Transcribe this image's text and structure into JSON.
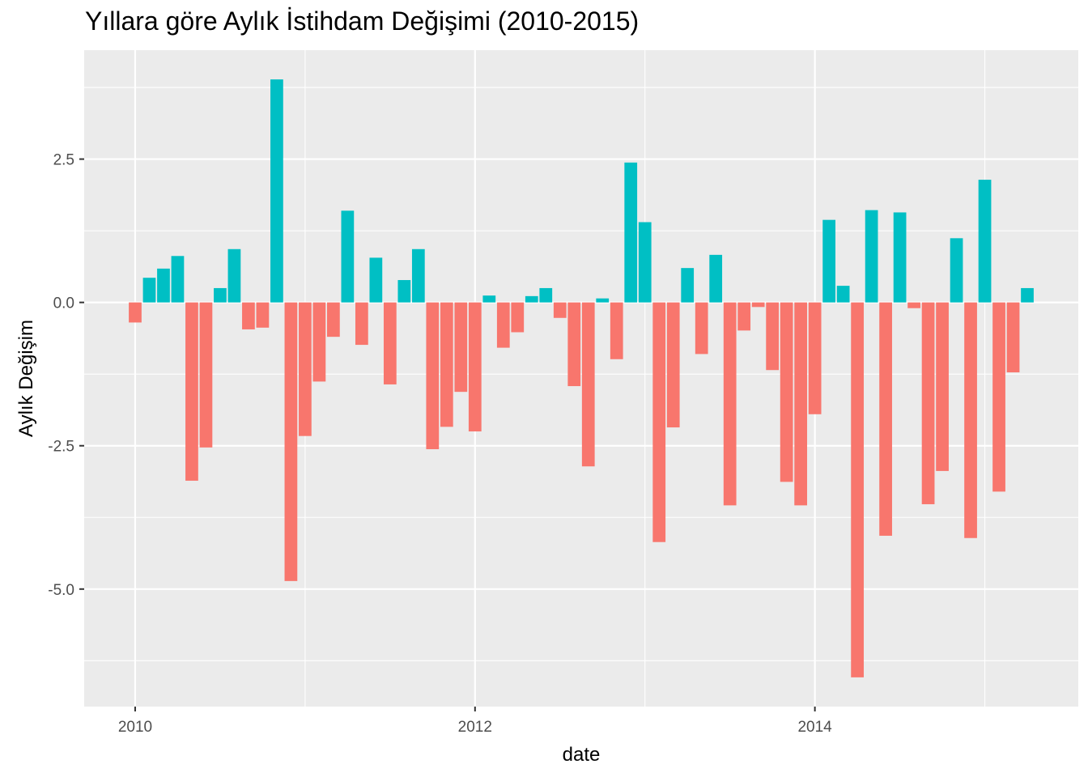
{
  "chart_data": {
    "type": "bar",
    "title": "Yıllara göre Aylık İstihdam Değişimi (2010-2015)",
    "xlabel": "date",
    "ylabel": "Aylık Değişim",
    "x_ticks": [
      "2010",
      "2012",
      "2014"
    ],
    "y_ticks": [
      "2.5",
      "0.0",
      "-2.5",
      "-5.0"
    ],
    "x_tick_values": [
      2010,
      2012,
      2014
    ],
    "y_tick_values": [
      2.5,
      0.0,
      -2.5,
      -5.0
    ],
    "xlim": [
      2009.7,
      2015.55
    ],
    "ylim": [
      -7.05,
      4.4
    ],
    "grid": true,
    "legend": "none",
    "colors": {
      "positive": "#00BFC4",
      "negative": "#F8766D",
      "panel": "#EBEBEB",
      "grid": "#FFFFFF"
    },
    "start": "2010-01",
    "x": [
      "2010-01",
      "2010-02",
      "2010-03",
      "2010-04",
      "2010-05",
      "2010-06",
      "2010-07",
      "2010-08",
      "2010-09",
      "2010-10",
      "2010-11",
      "2010-12",
      "2011-01",
      "2011-02",
      "2011-03",
      "2011-04",
      "2011-05",
      "2011-06",
      "2011-07",
      "2011-08",
      "2011-09",
      "2011-10",
      "2011-11",
      "2011-12",
      "2012-01",
      "2012-02",
      "2012-03",
      "2012-04",
      "2012-05",
      "2012-06",
      "2012-07",
      "2012-08",
      "2012-09",
      "2012-10",
      "2012-11",
      "2012-12",
      "2013-01",
      "2013-02",
      "2013-03",
      "2013-04",
      "2013-05",
      "2013-06",
      "2013-07",
      "2013-08",
      "2013-09",
      "2013-10",
      "2013-11",
      "2013-12",
      "2014-01",
      "2014-02",
      "2014-03",
      "2014-04",
      "2014-05",
      "2014-06",
      "2014-07",
      "2014-08",
      "2014-09",
      "2014-10",
      "2014-11",
      "2014-12",
      "2015-01",
      "2015-02",
      "2015-03",
      "2015-04"
    ],
    "values": [
      -0.35,
      0.43,
      0.59,
      0.81,
      -3.11,
      -2.53,
      0.25,
      0.93,
      -0.47,
      -0.44,
      3.89,
      -4.86,
      -2.33,
      -1.38,
      -0.6,
      1.6,
      -0.74,
      0.78,
      -1.43,
      0.39,
      0.93,
      -2.56,
      -2.17,
      -1.56,
      -2.25,
      0.12,
      -0.79,
      -0.52,
      0.11,
      0.25,
      -0.27,
      -1.46,
      -2.86,
      0.07,
      -0.99,
      2.44,
      1.4,
      -4.18,
      -2.18,
      0.6,
      -0.9,
      0.83,
      -3.54,
      -0.49,
      -0.08,
      -1.18,
      -3.13,
      -3.54,
      -1.95,
      1.44,
      0.29,
      -6.54,
      1.61,
      -4.07,
      1.57,
      -0.1,
      -3.52,
      -2.94,
      1.12,
      -4.11,
      2.14,
      -3.3,
      -1.22,
      0.25
    ]
  }
}
